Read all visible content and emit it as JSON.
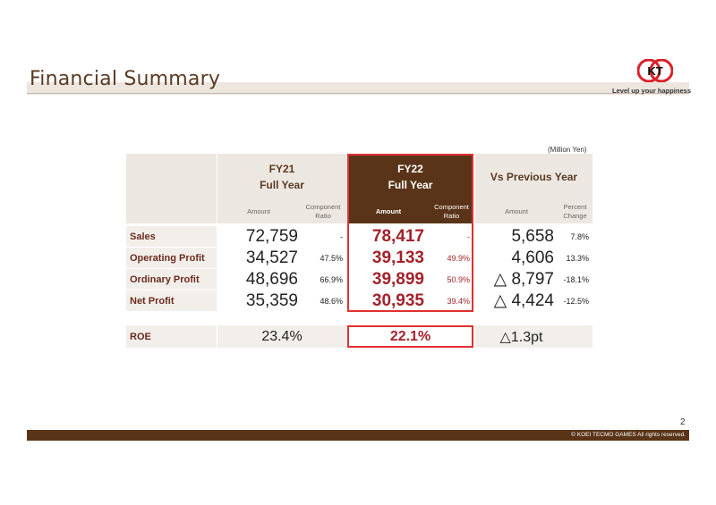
{
  "header": {
    "title": "Financial Summary",
    "logo_text": "KT",
    "tagline": "Level up your happiness"
  },
  "unit": "(Million Yen)",
  "columns": {
    "fy21": {
      "line1": "FY21",
      "line2": "Full Year",
      "amount": "Amount",
      "ratio1": "Component",
      "ratio2": "Ratio"
    },
    "fy22": {
      "line1": "FY22",
      "line2": "Full Year",
      "amount": "Amount",
      "ratio1": "Component",
      "ratio2": "Ratio"
    },
    "vs": {
      "title": "Vs Previous Year",
      "amount": "Amount",
      "pct1": "Percent",
      "pct2": "Change"
    }
  },
  "rows": [
    {
      "label": "Sales",
      "fy21_amount": "72,759",
      "fy21_ratio": "-",
      "fy22_amount": "78,417",
      "fy22_ratio": "-",
      "vs_amount": "5,658",
      "vs_pct": "7.8%"
    },
    {
      "label": "Operating Profit",
      "fy21_amount": "34,527",
      "fy21_ratio": "47.5%",
      "fy22_amount": "39,133",
      "fy22_ratio": "49.9%",
      "vs_amount": "4,606",
      "vs_pct": "13.3%"
    },
    {
      "label": "Ordinary Profit",
      "fy21_amount": "48,696",
      "fy21_ratio": "66.9%",
      "fy22_amount": "39,899",
      "fy22_ratio": "50.9%",
      "vs_amount": "△ 8,797",
      "vs_pct": "-18.1%"
    },
    {
      "label": "Net Profit",
      "fy21_amount": "35,359",
      "fy21_ratio": "48.6%",
      "fy22_amount": "30,935",
      "fy22_ratio": "39.4%",
      "vs_amount": "△ 4,424",
      "vs_pct": "-12.5%"
    }
  ],
  "roe": {
    "label": "ROE",
    "fy21": "23.4%",
    "fy22": "22.1%",
    "vs": "△1.3pt"
  },
  "footer": {
    "page": "2",
    "copyright": "© KOEI TECMO GAMES All rights reserved."
  },
  "colors": {
    "brand_brown": "#5a3418",
    "highlight_red": "#a3222a",
    "frame_red": "#e03030"
  }
}
